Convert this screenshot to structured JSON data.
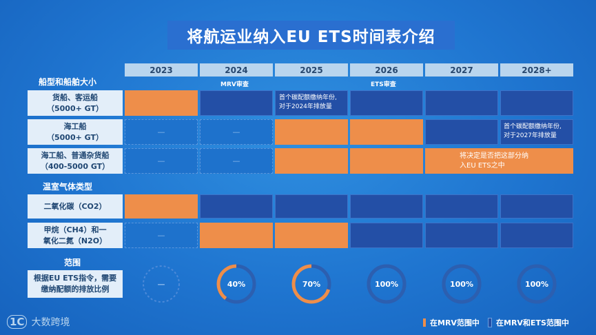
{
  "title": "将航运业纳入EU ETS时间表介绍",
  "years": [
    "2023",
    "2024",
    "2025",
    "2026",
    "2027",
    "2028+"
  ],
  "notes": {
    "mrv": "MRV审查",
    "ets": "ETS审查"
  },
  "sections": {
    "ship": "船型和船舶大小",
    "gas": "温室气体类型",
    "scope": "范围"
  },
  "rows": [
    {
      "label1": "货船、客运船",
      "label2": "（5000+ GT）"
    },
    {
      "label1": "海工船",
      "label2": "（5000+ GT）"
    },
    {
      "label1": "海工船、普通杂货船",
      "label2": "（400-5000 GT）"
    },
    {
      "label1": "二氧化碳（CO2）",
      "label2": ""
    },
    {
      "label1": "甲烷（CH4）和一",
      "label2": "氧化二氮（N2O）"
    },
    {
      "label1": "根据EU ETS指令，需要",
      "label2": "缴纳配额的排放比例"
    }
  ],
  "cell_texts": {
    "row1_2025_a": "首个碳配额缴纳年份,",
    "row1_2025_b": "对于2024年排放量",
    "row2_2028_a": "首个碳配额缴纳年份,",
    "row2_2028_b": "对于2027年排放量",
    "row3_2027_a": "将决定是否把这部分纳",
    "row3_2027_b": "入EU ETS之中"
  },
  "dash": "—",
  "scope_values": [
    {
      "label": "—",
      "fraction": 0
    },
    {
      "label": "40%",
      "fraction": 0.4
    },
    {
      "label": "70%",
      "fraction": 0.7
    },
    {
      "label": "100%",
      "fraction": 1.0
    },
    {
      "label": "100%",
      "fraction": 1.0
    },
    {
      "label": "100%",
      "fraction": 1.0
    }
  ],
  "legend": {
    "mrv": "在MRV范围中",
    "mrv_ets": "在MRV和ETS范围中"
  },
  "logo": {
    "mark": "1C",
    "name": "大数跨境"
  },
  "colors": {
    "orange": "#ee8e4a",
    "dark": "#234fa6",
    "ring_bg": "#2c5fb0"
  }
}
